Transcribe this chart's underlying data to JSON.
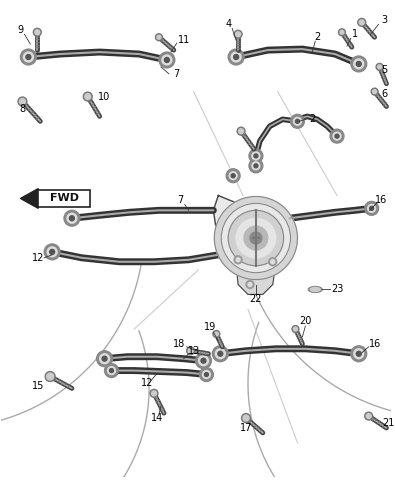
{
  "background_color": "#ffffff",
  "label_color": "#000000",
  "fig_width": 3.95,
  "fig_height": 4.8,
  "dpi": 100,
  "arm_color": "#333333",
  "arm_highlight": "#888888",
  "bushing_outer": "#666666",
  "bushing_inner": "#cccccc",
  "bushing_hole": "#333333",
  "bolt_color": "#555555",
  "knuckle_fill": "#e8e8e8",
  "knuckle_line": "#444444",
  "arch_color": "#aaaaaa",
  "label_fontsize": 7.0,
  "leader_color": "#333333"
}
